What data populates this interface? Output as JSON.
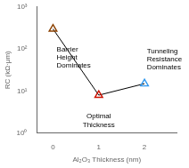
{
  "chart_data": {
    "type": "line",
    "x": [
      0,
      1,
      2
    ],
    "values": [
      300,
      8,
      15
    ],
    "colors": [
      "#8B4000",
      "#CC1100",
      "#3399EE"
    ],
    "color": "black",
    "marker": "triangle",
    "x_label": "Al₂O₃ Thickness (nm)",
    "y_label": "RC (kΩ·μm)",
    "log": "y",
    "xlim": [
      -0.35,
      2.7
    ],
    "xticks": [
      0,
      1,
      2
    ],
    "ylim": [
      1,
      1000
    ],
    "yticks": [
      {
        "value": 1,
        "label": "10⁰"
      },
      {
        "value": 10,
        "label": "10¹"
      },
      {
        "value": 100,
        "label": "10²"
      },
      {
        "value": 1000,
        "label": "10³"
      }
    ],
    "grid": false,
    "annotations": [
      {
        "text": "Barrier\nHeight\nDominates",
        "x": 0.08,
        "y": 120
      },
      {
        "text": "Optimal\nThickness",
        "x": 1.0,
        "y": 3.0
      },
      {
        "text": "Tunneling\nResistance\nDominates",
        "x": 2.05,
        "y": 55
      }
    ]
  }
}
